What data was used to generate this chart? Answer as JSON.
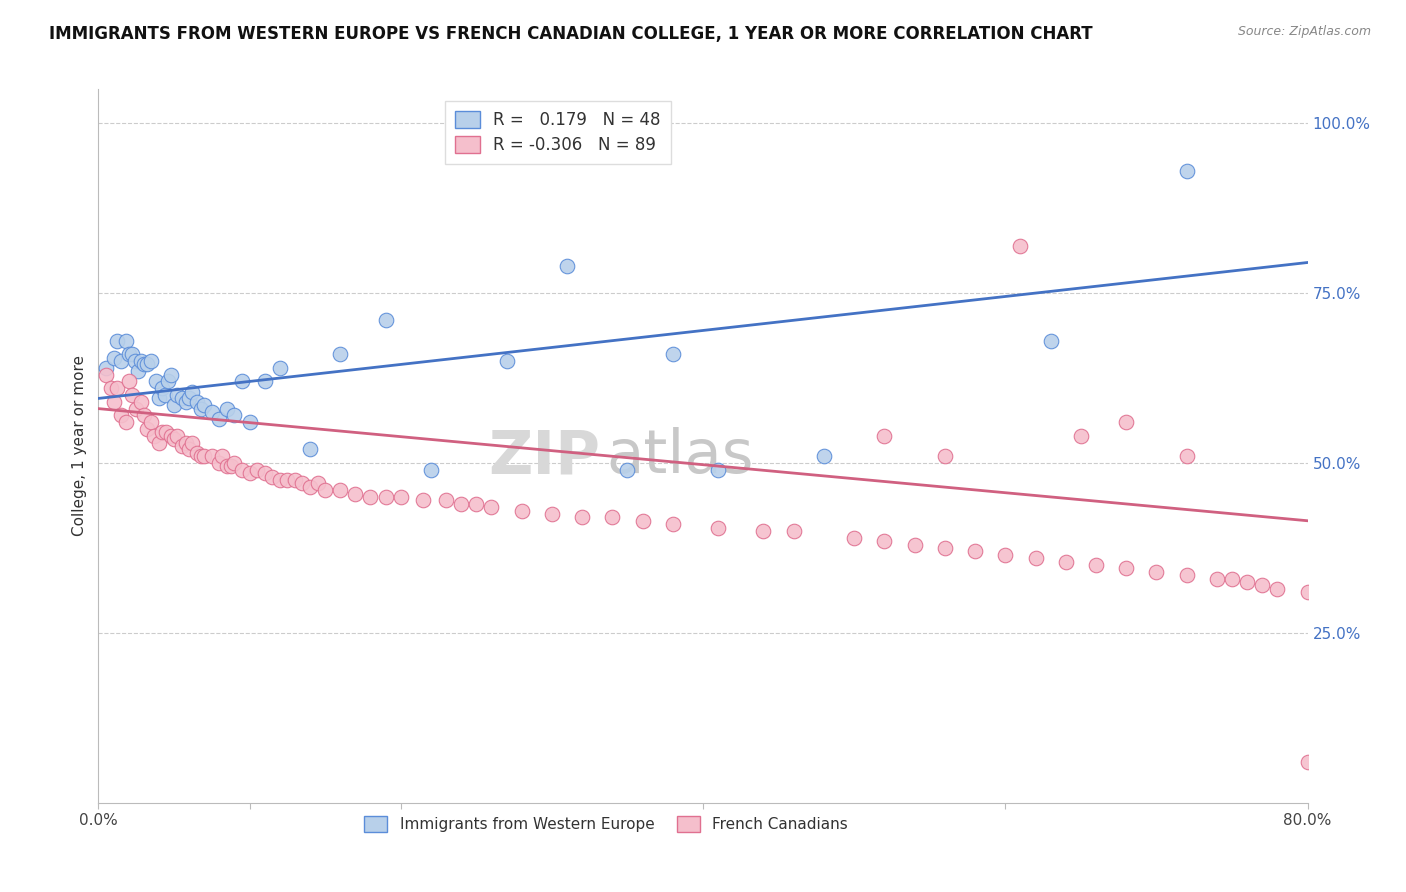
{
  "title": "IMMIGRANTS FROM WESTERN EUROPE VS FRENCH CANADIAN COLLEGE, 1 YEAR OR MORE CORRELATION CHART",
  "source": "Source: ZipAtlas.com",
  "ylabel": "College, 1 year or more",
  "x_min": 0.0,
  "x_max": 0.8,
  "y_min": 0.0,
  "y_max": 1.05,
  "y_tick_labels_right": [
    "100.0%",
    "75.0%",
    "50.0%",
    "25.0%"
  ],
  "y_tick_positions_right": [
    1.0,
    0.75,
    0.5,
    0.25
  ],
  "blue_R": "0.179",
  "blue_N": "48",
  "pink_R": "-0.306",
  "pink_N": "89",
  "blue_color": "#b8d0ea",
  "blue_edge_color": "#5b8dd9",
  "pink_color": "#f5bfcc",
  "pink_edge_color": "#e07090",
  "blue_line_color": "#4472c4",
  "pink_line_color": "#d06080",
  "watermark_zip": "ZIP",
  "watermark_atlas": "atlas",
  "blue_line_y_start": 0.595,
  "blue_line_y_end": 0.795,
  "pink_line_y_start": 0.58,
  "pink_line_y_end": 0.415,
  "blue_scatter_x": [
    0.005,
    0.01,
    0.012,
    0.015,
    0.018,
    0.02,
    0.022,
    0.024,
    0.026,
    0.028,
    0.03,
    0.032,
    0.035,
    0.038,
    0.04,
    0.042,
    0.044,
    0.046,
    0.048,
    0.05,
    0.052,
    0.055,
    0.058,
    0.06,
    0.062,
    0.065,
    0.068,
    0.07,
    0.075,
    0.08,
    0.085,
    0.09,
    0.095,
    0.1,
    0.11,
    0.12,
    0.14,
    0.16,
    0.19,
    0.22,
    0.27,
    0.31,
    0.35,
    0.38,
    0.41,
    0.48,
    0.63,
    0.72
  ],
  "blue_scatter_y": [
    0.64,
    0.655,
    0.68,
    0.65,
    0.68,
    0.66,
    0.66,
    0.65,
    0.635,
    0.65,
    0.645,
    0.645,
    0.65,
    0.62,
    0.595,
    0.61,
    0.6,
    0.62,
    0.63,
    0.585,
    0.6,
    0.595,
    0.59,
    0.595,
    0.605,
    0.59,
    0.58,
    0.585,
    0.575,
    0.565,
    0.58,
    0.57,
    0.62,
    0.56,
    0.62,
    0.64,
    0.52,
    0.66,
    0.71,
    0.49,
    0.65,
    0.79,
    0.49,
    0.66,
    0.49,
    0.51,
    0.68,
    0.93
  ],
  "pink_scatter_x": [
    0.005,
    0.008,
    0.01,
    0.012,
    0.015,
    0.018,
    0.02,
    0.022,
    0.025,
    0.028,
    0.03,
    0.032,
    0.035,
    0.037,
    0.04,
    0.042,
    0.045,
    0.048,
    0.05,
    0.052,
    0.055,
    0.058,
    0.06,
    0.062,
    0.065,
    0.068,
    0.07,
    0.075,
    0.08,
    0.082,
    0.085,
    0.088,
    0.09,
    0.095,
    0.1,
    0.105,
    0.11,
    0.115,
    0.12,
    0.125,
    0.13,
    0.135,
    0.14,
    0.145,
    0.15,
    0.16,
    0.17,
    0.18,
    0.19,
    0.2,
    0.215,
    0.23,
    0.24,
    0.25,
    0.26,
    0.28,
    0.3,
    0.32,
    0.34,
    0.36,
    0.38,
    0.41,
    0.44,
    0.46,
    0.5,
    0.52,
    0.54,
    0.56,
    0.58,
    0.6,
    0.62,
    0.64,
    0.66,
    0.68,
    0.7,
    0.72,
    0.74,
    0.76,
    0.78,
    0.8,
    0.52,
    0.56,
    0.61,
    0.65,
    0.68,
    0.72,
    0.75,
    0.77,
    0.8
  ],
  "pink_scatter_y": [
    0.63,
    0.61,
    0.59,
    0.61,
    0.57,
    0.56,
    0.62,
    0.6,
    0.58,
    0.59,
    0.57,
    0.55,
    0.56,
    0.54,
    0.53,
    0.545,
    0.545,
    0.54,
    0.535,
    0.54,
    0.525,
    0.53,
    0.52,
    0.53,
    0.515,
    0.51,
    0.51,
    0.51,
    0.5,
    0.51,
    0.495,
    0.495,
    0.5,
    0.49,
    0.485,
    0.49,
    0.485,
    0.48,
    0.475,
    0.475,
    0.475,
    0.47,
    0.465,
    0.47,
    0.46,
    0.46,
    0.455,
    0.45,
    0.45,
    0.45,
    0.445,
    0.445,
    0.44,
    0.44,
    0.435,
    0.43,
    0.425,
    0.42,
    0.42,
    0.415,
    0.41,
    0.405,
    0.4,
    0.4,
    0.39,
    0.385,
    0.38,
    0.375,
    0.37,
    0.365,
    0.36,
    0.355,
    0.35,
    0.345,
    0.34,
    0.335,
    0.33,
    0.325,
    0.315,
    0.31,
    0.54,
    0.51,
    0.82,
    0.54,
    0.56,
    0.51,
    0.33,
    0.32,
    0.06
  ]
}
